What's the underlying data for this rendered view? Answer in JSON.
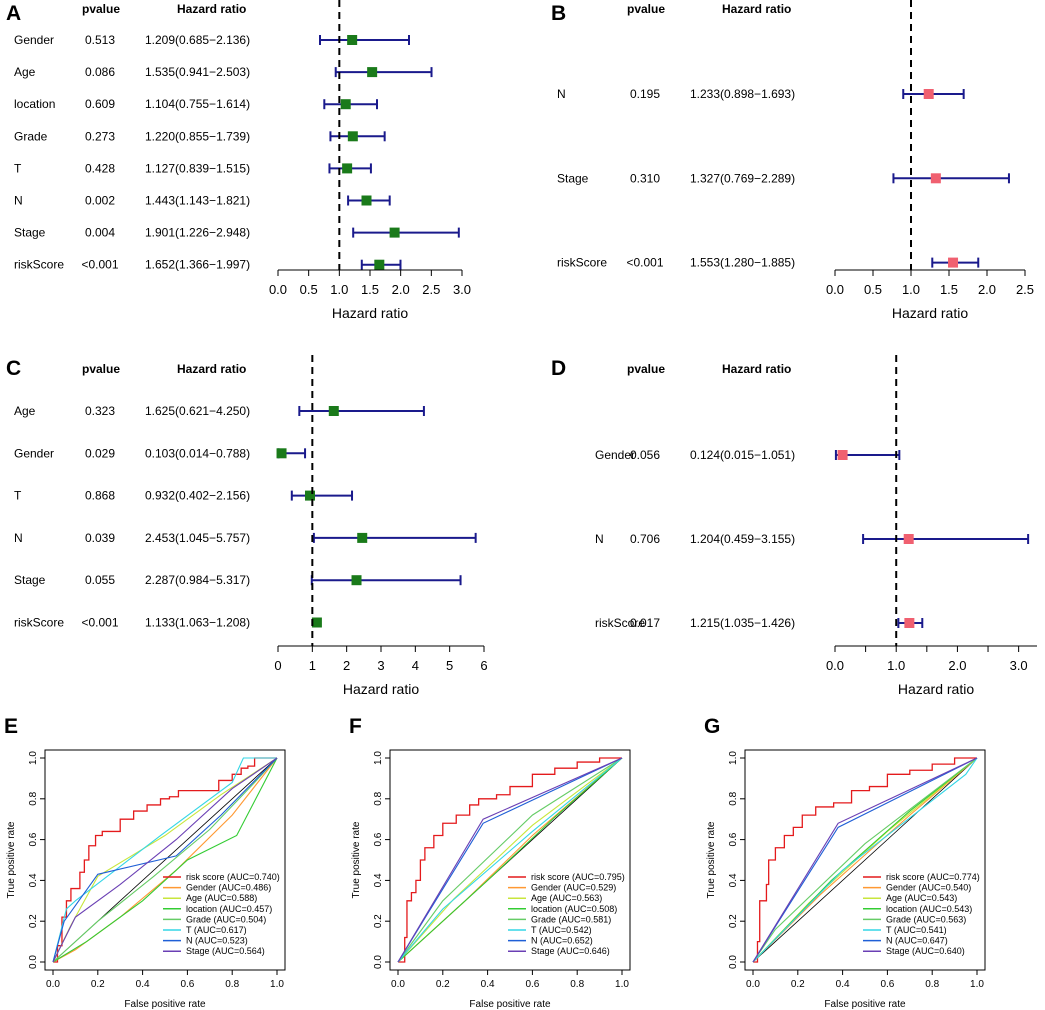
{
  "colors": {
    "forest_marker": "#1a7a1a",
    "forest_marker_pink": "#f06070",
    "ci_line": "#1a1a8c",
    "roc_series": [
      "#e41a1c",
      "#ff9933",
      "#c8e63c",
      "#33cc33",
      "#66cc66",
      "#33d6e6",
      "#1f5fd6",
      "#6a3fb4"
    ]
  },
  "chart_data": [
    {
      "type": "forest",
      "panel": "A",
      "header_pvalue": "pvalue",
      "header_hr": "Hazard ratio",
      "xlabel": "Hazard ratio",
      "xlim": [
        0,
        3.0
      ],
      "ref": 1,
      "ticks": [
        "0.0",
        "0.5",
        "1.0",
        "1.5",
        "2.0",
        "2.5",
        "3.0"
      ],
      "rows": [
        {
          "name": "Gender",
          "pvalue": "0.513",
          "hr_text": "1.209(0.685−2.136)",
          "hr": 1.209,
          "lo": 0.685,
          "hi": 2.136
        },
        {
          "name": "Age",
          "pvalue": "0.086",
          "hr_text": "1.535(0.941−2.503)",
          "hr": 1.535,
          "lo": 0.941,
          "hi": 2.503
        },
        {
          "name": "location",
          "pvalue": "0.609",
          "hr_text": "1.104(0.755−1.614)",
          "hr": 1.104,
          "lo": 0.755,
          "hi": 1.614
        },
        {
          "name": "Grade",
          "pvalue": "0.273",
          "hr_text": "1.220(0.855−1.739)",
          "hr": 1.22,
          "lo": 0.855,
          "hi": 1.739
        },
        {
          "name": "T",
          "pvalue": "0.428",
          "hr_text": "1.127(0.839−1.515)",
          "hr": 1.127,
          "lo": 0.839,
          "hi": 1.515
        },
        {
          "name": "N",
          "pvalue": "0.002",
          "hr_text": "1.443(1.143−1.821)",
          "hr": 1.443,
          "lo": 1.143,
          "hi": 1.821
        },
        {
          "name": "Stage",
          "pvalue": "0.004",
          "hr_text": "1.901(1.226−2.948)",
          "hr": 1.901,
          "lo": 1.226,
          "hi": 2.948
        },
        {
          "name": "riskScore",
          "pvalue": "<0.001",
          "hr_text": "1.652(1.366−1.997)",
          "hr": 1.652,
          "lo": 1.366,
          "hi": 1.997
        }
      ]
    },
    {
      "type": "forest",
      "panel": "B",
      "header_pvalue": "pvalue",
      "header_hr": "Hazard ratio",
      "xlabel": "Hazard ratio",
      "xlim": [
        0,
        2.5
      ],
      "ref": 1,
      "ticks": [
        "0.0",
        "0.5",
        "1.0",
        "1.5",
        "2.0",
        "2.5"
      ],
      "rows": [
        {
          "name": "N",
          "pvalue": "0.195",
          "hr_text": "1.233(0.898−1.693)",
          "hr": 1.233,
          "lo": 0.898,
          "hi": 1.693
        },
        {
          "name": "Stage",
          "pvalue": "0.310",
          "hr_text": "1.327(0.769−2.289)",
          "hr": 1.327,
          "lo": 0.769,
          "hi": 2.289
        },
        {
          "name": "riskScore",
          "pvalue": "<0.001",
          "hr_text": "1.553(1.280−1.885)",
          "hr": 1.553,
          "lo": 1.28,
          "hi": 1.885
        }
      ]
    },
    {
      "type": "forest",
      "panel": "C",
      "header_pvalue": "pvalue",
      "header_hr": "Hazard ratio",
      "xlabel": "Hazard ratio",
      "xlim": [
        0,
        6
      ],
      "ref": 1,
      "ticks": [
        "0",
        "1",
        "2",
        "3",
        "4",
        "5",
        "6"
      ],
      "rows": [
        {
          "name": "Age",
          "pvalue": "0.323",
          "hr_text": "1.625(0.621−4.250)",
          "hr": 1.625,
          "lo": 0.621,
          "hi": 4.25
        },
        {
          "name": "Gender",
          "pvalue": "0.029",
          "hr_text": "0.103(0.014−0.788)",
          "hr": 0.103,
          "lo": 0.014,
          "hi": 0.788
        },
        {
          "name": "T",
          "pvalue": "0.868",
          "hr_text": "0.932(0.402−2.156)",
          "hr": 0.932,
          "lo": 0.402,
          "hi": 2.156
        },
        {
          "name": "N",
          "pvalue": "0.039",
          "hr_text": "2.453(1.045−5.757)",
          "hr": 2.453,
          "lo": 1.045,
          "hi": 5.757
        },
        {
          "name": "Stage",
          "pvalue": "0.055",
          "hr_text": "2.287(0.984−5.317)",
          "hr": 2.287,
          "lo": 0.984,
          "hi": 5.317
        },
        {
          "name": "riskScore",
          "pvalue": "<0.001",
          "hr_text": "1.133(1.063−1.208)",
          "hr": 1.133,
          "lo": 1.063,
          "hi": 1.208
        }
      ]
    },
    {
      "type": "forest",
      "panel": "D",
      "header_pvalue": "pvalue",
      "header_hr": "Hazard ratio",
      "xlabel": "Hazard ratio",
      "xlim": [
        0,
        3.3
      ],
      "ref": 1,
      "ticks": [
        "0.0",
        "1.0",
        "2.0",
        "3.0"
      ],
      "tick_values": [
        0,
        1,
        2,
        3
      ],
      "minor_ticks": [
        0.5,
        1.5,
        2.5
      ],
      "rows": [
        {
          "name": "Gender",
          "pvalue": "0.056",
          "hr_text": "0.124(0.015−1.051)",
          "hr": 0.124,
          "lo": 0.015,
          "hi": 1.051
        },
        {
          "name": "N",
          "pvalue": "0.706",
          "hr_text": "1.204(0.459−3.155)",
          "hr": 1.204,
          "lo": 0.459,
          "hi": 3.155
        },
        {
          "name": "riskScore",
          "pvalue": "0.017",
          "hr_text": "1.215(1.035−1.426)",
          "hr": 1.215,
          "lo": 1.035,
          "hi": 1.426
        }
      ]
    },
    {
      "type": "line",
      "panel": "E",
      "xlabel": "False positive rate",
      "ylabel": "True positive rate",
      "xlim": [
        0,
        1
      ],
      "ylim": [
        0,
        1
      ],
      "xticks": [
        "0.0",
        "0.2",
        "0.4",
        "0.6",
        "0.8",
        "1.0"
      ],
      "yticks": [
        "0.0",
        "0.2",
        "0.4",
        "0.6",
        "0.8",
        "1.0"
      ],
      "series": [
        {
          "name": "risk score (AUC=0.740)",
          "points": [
            [
              0,
              0
            ],
            [
              0.02,
              0.08
            ],
            [
              0.04,
              0.22
            ],
            [
              0.06,
              0.3
            ],
            [
              0.08,
              0.36
            ],
            [
              0.1,
              0.36
            ],
            [
              0.12,
              0.44
            ],
            [
              0.14,
              0.5
            ],
            [
              0.16,
              0.57
            ],
            [
              0.19,
              0.62
            ],
            [
              0.22,
              0.64
            ],
            [
              0.26,
              0.64
            ],
            [
              0.3,
              0.7
            ],
            [
              0.36,
              0.74
            ],
            [
              0.42,
              0.77
            ],
            [
              0.48,
              0.8
            ],
            [
              0.52,
              0.81
            ],
            [
              0.56,
              0.84
            ],
            [
              0.7,
              0.84
            ],
            [
              0.74,
              0.89
            ],
            [
              0.8,
              0.92
            ],
            [
              0.84,
              0.95
            ],
            [
              0.87,
              0.96
            ],
            [
              0.9,
              1.0
            ],
            [
              1,
              1
            ]
          ]
        },
        {
          "name": "Gender (AUC=0.486)",
          "points": [
            [
              0,
              0
            ],
            [
              0.1,
              0.06
            ],
            [
              0.3,
              0.22
            ],
            [
              0.55,
              0.45
            ],
            [
              0.8,
              0.72
            ],
            [
              1,
              1
            ]
          ]
        },
        {
          "name": "Age (AUC=0.588)",
          "points": [
            [
              0,
              0
            ],
            [
              0.08,
              0.18
            ],
            [
              0.2,
              0.42
            ],
            [
              0.5,
              0.62
            ],
            [
              0.75,
              0.82
            ],
            [
              1,
              1
            ]
          ]
        },
        {
          "name": "location (AUC=0.457)",
          "points": [
            [
              0,
              0
            ],
            [
              0.15,
              0.1
            ],
            [
              0.4,
              0.3
            ],
            [
              0.6,
              0.5
            ],
            [
              0.82,
              0.62
            ],
            [
              1,
              1
            ]
          ]
        },
        {
          "name": "Grade (AUC=0.504)",
          "points": [
            [
              0,
              0
            ],
            [
              0.2,
              0.2
            ],
            [
              0.45,
              0.42
            ],
            [
              0.7,
              0.65
            ],
            [
              0.9,
              0.88
            ],
            [
              1,
              1
            ]
          ]
        },
        {
          "name": "T (AUC=0.617)",
          "points": [
            [
              0,
              0
            ],
            [
              0.06,
              0.26
            ],
            [
              0.1,
              0.3
            ],
            [
              0.48,
              0.62
            ],
            [
              0.8,
              0.88
            ],
            [
              0.85,
              1.0
            ],
            [
              1,
              1
            ]
          ]
        },
        {
          "name": "N (AUC=0.523)",
          "points": [
            [
              0,
              0
            ],
            [
              0.05,
              0.2
            ],
            [
              0.2,
              0.43
            ],
            [
              0.55,
              0.52
            ],
            [
              0.75,
              0.72
            ],
            [
              1,
              1
            ]
          ]
        },
        {
          "name": "Stage (AUC=0.564)",
          "points": [
            [
              0,
              0
            ],
            [
              0.1,
              0.22
            ],
            [
              0.3,
              0.38
            ],
            [
              0.55,
              0.6
            ],
            [
              0.8,
              0.85
            ],
            [
              1,
              1
            ]
          ]
        }
      ]
    },
    {
      "type": "line",
      "panel": "F",
      "xlabel": "False positive rate",
      "ylabel": "True positive rate",
      "xlim": [
        0,
        1
      ],
      "ylim": [
        0,
        1
      ],
      "xticks": [
        "0.0",
        "0.2",
        "0.4",
        "0.6",
        "0.8",
        "1.0"
      ],
      "yticks": [
        "0.0",
        "0.2",
        "0.4",
        "0.6",
        "0.8",
        "1.0"
      ],
      "series": [
        {
          "name": "risk score (AUC=0.795)",
          "points": [
            [
              0,
              0
            ],
            [
              0.03,
              0.12
            ],
            [
              0.04,
              0.3
            ],
            [
              0.06,
              0.34
            ],
            [
              0.08,
              0.4
            ],
            [
              0.1,
              0.5
            ],
            [
              0.12,
              0.56
            ],
            [
              0.16,
              0.62
            ],
            [
              0.2,
              0.68
            ],
            [
              0.26,
              0.72
            ],
            [
              0.32,
              0.77
            ],
            [
              0.36,
              0.8
            ],
            [
              0.44,
              0.82
            ],
            [
              0.5,
              0.86
            ],
            [
              0.6,
              0.92
            ],
            [
              0.7,
              0.95
            ],
            [
              0.8,
              0.98
            ],
            [
              0.9,
              1.0
            ],
            [
              1,
              1
            ]
          ]
        },
        {
          "name": "Gender (AUC=0.529)",
          "points": [
            [
              0,
              0
            ],
            [
              0.3,
              0.3
            ],
            [
              0.6,
              0.62
            ],
            [
              1,
              1
            ]
          ]
        },
        {
          "name": "Age (AUC=0.563)",
          "points": [
            [
              0,
              0
            ],
            [
              0.25,
              0.31
            ],
            [
              0.6,
              0.67
            ],
            [
              1,
              1
            ]
          ]
        },
        {
          "name": "location (AUC=0.508)",
          "points": [
            [
              0,
              0
            ],
            [
              0.4,
              0.4
            ],
            [
              0.7,
              0.71
            ],
            [
              1,
              1
            ]
          ]
        },
        {
          "name": "Grade (AUC=0.581)",
          "points": [
            [
              0,
              0
            ],
            [
              0.2,
              0.3
            ],
            [
              0.6,
              0.72
            ],
            [
              1,
              1
            ]
          ]
        },
        {
          "name": "T (AUC=0.542)",
          "points": [
            [
              0,
              0
            ],
            [
              0.2,
              0.26
            ],
            [
              0.6,
              0.64
            ],
            [
              1,
              1
            ]
          ]
        },
        {
          "name": "N (AUC=0.652)",
          "points": [
            [
              0,
              0
            ],
            [
              0.38,
              0.68
            ],
            [
              1,
              1
            ]
          ]
        },
        {
          "name": "Stage (AUC=0.646)",
          "points": [
            [
              0,
              0
            ],
            [
              0.38,
              0.7
            ],
            [
              1,
              1
            ]
          ]
        }
      ]
    },
    {
      "type": "line",
      "panel": "G",
      "xlabel": "False positive rate",
      "ylabel": "True positive rate",
      "xlim": [
        0,
        1
      ],
      "ylim": [
        0,
        1
      ],
      "xticks": [
        "0.0",
        "0.2",
        "0.4",
        "0.6",
        "0.8",
        "1.0"
      ],
      "yticks": [
        "0.0",
        "0.2",
        "0.4",
        "0.6",
        "0.8",
        "1.0"
      ],
      "series": [
        {
          "name": "risk score (AUC=0.774)",
          "points": [
            [
              0,
              0
            ],
            [
              0.02,
              0.1
            ],
            [
              0.03,
              0.3
            ],
            [
              0.06,
              0.38
            ],
            [
              0.07,
              0.5
            ],
            [
              0.1,
              0.56
            ],
            [
              0.14,
              0.62
            ],
            [
              0.18,
              0.66
            ],
            [
              0.22,
              0.72
            ],
            [
              0.28,
              0.76
            ],
            [
              0.36,
              0.78
            ],
            [
              0.44,
              0.84
            ],
            [
              0.52,
              0.86
            ],
            [
              0.6,
              0.92
            ],
            [
              0.7,
              0.94
            ],
            [
              0.8,
              0.97
            ],
            [
              0.9,
              1.0
            ],
            [
              1,
              1
            ]
          ]
        },
        {
          "name": "Gender (AUC=0.540)",
          "points": [
            [
              0,
              0
            ],
            [
              0.3,
              0.33
            ],
            [
              0.7,
              0.72
            ],
            [
              1,
              1
            ]
          ]
        },
        {
          "name": "Age (AUC=0.543)",
          "points": [
            [
              0,
              0
            ],
            [
              0.25,
              0.29
            ],
            [
              0.6,
              0.64
            ],
            [
              1,
              1
            ]
          ]
        },
        {
          "name": "location (AUC=0.543)",
          "points": [
            [
              0,
              0
            ],
            [
              0.35,
              0.4
            ],
            [
              0.7,
              0.74
            ],
            [
              1,
              1
            ]
          ]
        },
        {
          "name": "Grade (AUC=0.563)",
          "points": [
            [
              0,
              0
            ],
            [
              0.1,
              0.16
            ],
            [
              0.5,
              0.58
            ],
            [
              1,
              1
            ]
          ]
        },
        {
          "name": "T (AUC=0.541)",
          "points": [
            [
              0,
              0
            ],
            [
              0.4,
              0.45
            ],
            [
              0.95,
              0.92
            ],
            [
              1,
              1
            ]
          ]
        },
        {
          "name": "N (AUC=0.647)",
          "points": [
            [
              0,
              0
            ],
            [
              0.38,
              0.66
            ],
            [
              1,
              1
            ]
          ]
        },
        {
          "name": "Stage (AUC=0.640)",
          "points": [
            [
              0,
              0
            ],
            [
              0.38,
              0.68
            ],
            [
              1,
              1
            ]
          ]
        }
      ]
    }
  ]
}
